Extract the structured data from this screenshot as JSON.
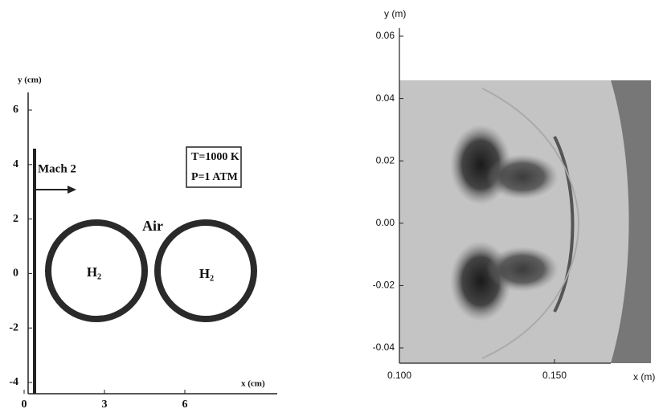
{
  "left": {
    "y_label": "y (cm)",
    "x_label": "x (cm)",
    "yticks": [
      6,
      4,
      2,
      0,
      -2,
      -4
    ],
    "xticks": [
      0,
      3,
      6
    ],
    "shock_label": "Mach 2",
    "conditions": [
      "T=1000 K",
      "P=1 ATM"
    ],
    "air_label": "Air",
    "circle_labels": [
      "H₂",
      "H₂"
    ]
  },
  "right": {
    "y_label": "y (m)",
    "x_label": "x (m)",
    "yticks": [
      0.06,
      0.04,
      0.02,
      {
        "value": 0,
        "label": "0.00"
      },
      -0.02,
      -0.04
    ],
    "xticks": [
      {
        "value": 0.1,
        "label": "0.100"
      },
      {
        "value": 0.15,
        "label": "0.150"
      }
    ]
  }
}
